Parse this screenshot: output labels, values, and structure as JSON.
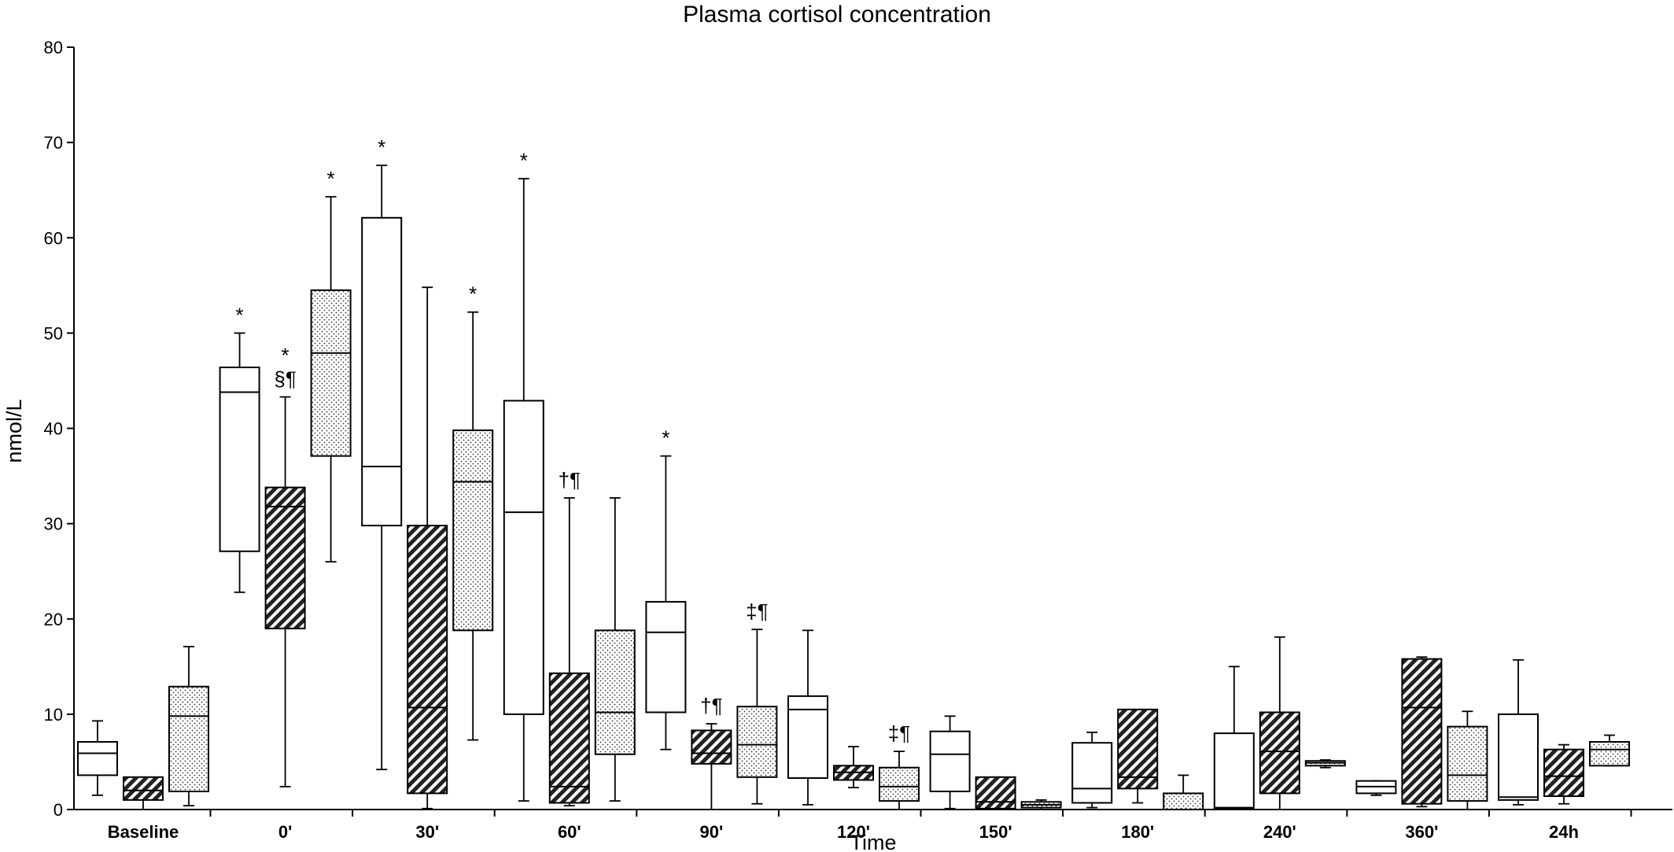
{
  "chart_data": {
    "type": "box",
    "title": "Plasma cortisol concentration",
    "xlabel": "Time",
    "ylabel": "nmol/L",
    "ylim": [
      0,
      80
    ],
    "yticks": [
      0,
      10,
      20,
      30,
      40,
      50,
      60,
      70,
      80
    ],
    "grid": false,
    "legend": "none",
    "categories": [
      "Baseline",
      "0'",
      "30'",
      "60'",
      "90'",
      "120'",
      "150'",
      "180'",
      "240'",
      "360'",
      "24h"
    ],
    "series": [
      {
        "fill": "white",
        "values": [
          {
            "min": 1.5,
            "q1": 3.6,
            "median": 5.9,
            "q3": 7.1,
            "max": 9.3
          },
          {
            "min": 22.8,
            "q1": 27.1,
            "median": 43.8,
            "q3": 46.4,
            "max": 50.0,
            "annotation": "*"
          },
          {
            "min": 4.2,
            "q1": 29.8,
            "median": 36.0,
            "q3": 62.1,
            "max": 67.6,
            "annotation": "*"
          },
          {
            "min": 0.9,
            "q1": 10.0,
            "median": 31.2,
            "q3": 42.9,
            "max": 66.2,
            "annotation": "*"
          },
          {
            "min": 6.3,
            "q1": 10.2,
            "median": 18.6,
            "q3": 21.8,
            "max": 37.1,
            "annotation": "*"
          },
          {
            "min": 0.5,
            "q1": 3.3,
            "median": 10.5,
            "q3": 11.9,
            "max": 18.8
          },
          {
            "min": 0.1,
            "q1": 1.9,
            "median": 5.8,
            "q3": 8.2,
            "max": 9.8
          },
          {
            "min": 0.2,
            "q1": 0.7,
            "median": 2.2,
            "q3": 7.0,
            "max": 8.1
          },
          {
            "min": 0.0,
            "q1": 0.1,
            "median": 0.2,
            "q3": 8.0,
            "max": 15.0
          },
          {
            "min": 1.5,
            "q1": 1.7,
            "median": 2.4,
            "q3": 3.0,
            "max": 3.0
          },
          {
            "min": 0.5,
            "q1": 1.0,
            "median": 1.3,
            "q3": 10.0,
            "max": 15.7
          }
        ]
      },
      {
        "fill": "hatched",
        "values": [
          {
            "min": 0.0,
            "q1": 1.0,
            "median": 2.0,
            "q3": 3.4,
            "max": 3.4
          },
          {
            "min": 2.4,
            "q1": 19.0,
            "median": 31.8,
            "q3": 33.8,
            "max": 43.3,
            "annotation": "*\n§¶"
          },
          {
            "min": 0.1,
            "q1": 1.7,
            "median": 10.7,
            "q3": 29.8,
            "max": 54.8
          },
          {
            "min": 0.4,
            "q1": 0.7,
            "median": 2.4,
            "q3": 14.3,
            "max": 32.7,
            "annotation": "†¶"
          },
          {
            "min": 0.0,
            "q1": 4.8,
            "median": 5.9,
            "q3": 8.3,
            "max": 9.0,
            "annotation": "†¶"
          },
          {
            "min": 2.3,
            "q1": 3.1,
            "median": 3.9,
            "q3": 4.6,
            "max": 6.6
          },
          {
            "min": 0.0,
            "q1": 0.1,
            "median": 0.8,
            "q3": 3.4,
            "max": 3.4
          },
          {
            "min": 0.7,
            "q1": 2.2,
            "median": 3.4,
            "q3": 10.5,
            "max": 10.5
          },
          {
            "min": 0.0,
            "q1": 1.7,
            "median": 6.1,
            "q3": 10.2,
            "max": 18.1
          },
          {
            "min": 0.3,
            "q1": 0.6,
            "median": 10.7,
            "q3": 15.8,
            "max": 16.0
          },
          {
            "min": 0.6,
            "q1": 1.4,
            "median": 3.5,
            "q3": 6.3,
            "max": 6.8
          }
        ]
      },
      {
        "fill": "dotted",
        "values": [
          {
            "min": 0.4,
            "q1": 1.9,
            "median": 9.8,
            "q3": 12.9,
            "max": 17.1
          },
          {
            "min": 26.0,
            "q1": 37.1,
            "median": 47.9,
            "q3": 54.5,
            "max": 64.3,
            "annotation": "*"
          },
          {
            "min": 7.3,
            "q1": 18.8,
            "median": 34.4,
            "q3": 39.8,
            "max": 52.2,
            "annotation": "*"
          },
          {
            "min": 0.9,
            "q1": 5.8,
            "median": 10.2,
            "q3": 18.8,
            "max": 32.7
          },
          {
            "min": 0.6,
            "q1": 3.4,
            "median": 6.8,
            "q3": 10.8,
            "max": 18.9,
            "annotation": "‡¶"
          },
          {
            "min": 0.0,
            "q1": 0.9,
            "median": 2.4,
            "q3": 4.4,
            "max": 6.1,
            "annotation": "‡¶"
          },
          {
            "min": 0.0,
            "q1": 0.2,
            "median": 0.5,
            "q3": 0.8,
            "max": 1.0
          },
          {
            "min": 0.0,
            "q1": 0.0,
            "median": 0.0,
            "q3": 1.7,
            "max": 3.6
          },
          {
            "min": 4.4,
            "q1": 4.6,
            "median": 4.9,
            "q3": 5.1,
            "max": 5.2
          },
          {
            "min": 0.0,
            "q1": 0.9,
            "median": 3.6,
            "q3": 8.7,
            "max": 10.3
          },
          {
            "min": 4.6,
            "q1": 4.6,
            "median": 6.3,
            "q3": 7.1,
            "max": 7.8
          }
        ]
      }
    ]
  }
}
